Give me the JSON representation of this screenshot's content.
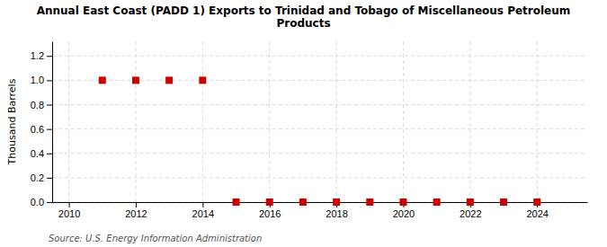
{
  "chart_data": {
    "type": "scatter",
    "title": "Annual East Coast (PADD 1) Exports to Trinidad and Tobago of Miscellaneous Petroleum\nProducts",
    "ylabel": "Thousand Barrels",
    "annotations": [
      "Source: U.S. Energy Information Administration"
    ],
    "x": [
      2011,
      2012,
      2013,
      2014,
      2015,
      2016,
      2017,
      2018,
      2019,
      2020,
      2021,
      2022,
      2023,
      2024
    ],
    "values": [
      1.0,
      1.0,
      1.0,
      1.0,
      0.0,
      0.0,
      0.0,
      0.0,
      0.0,
      0.0,
      0.0,
      0.0,
      0.0,
      0.0
    ],
    "color": "#cc0000",
    "marker": "square",
    "xlim": [
      2009.5,
      2025.5
    ],
    "ylim": [
      0.0,
      1.32
    ],
    "xticks": [
      2010,
      2012,
      2014,
      2016,
      2018,
      2020,
      2022,
      2024
    ],
    "yticks": [
      {
        "value": 0.0,
        "label": "0.0"
      },
      0.2,
      0.4,
      0.6,
      0.8,
      {
        "value": 1.0,
        "label": "1.0"
      },
      1.2
    ],
    "grid": true
  }
}
